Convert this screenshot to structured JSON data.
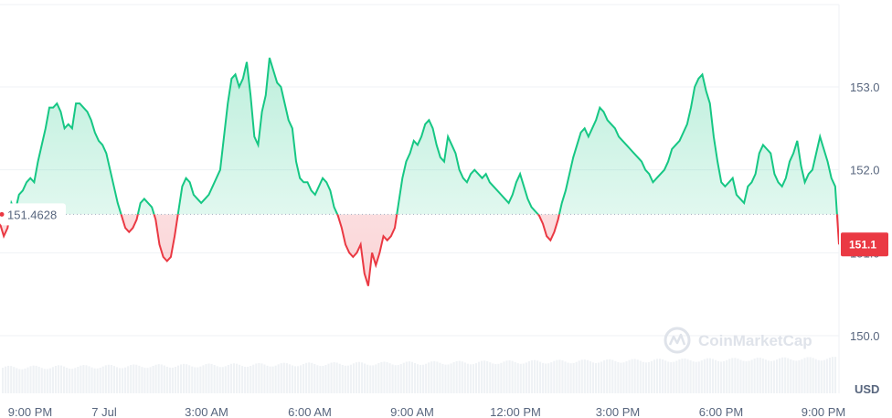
{
  "chart_data": {
    "type": "area",
    "ylabel_unit": "USD",
    "y_ticks": [
      150.0,
      151.0,
      152.0,
      153.0
    ],
    "y_tick_labels": [
      "150.0",
      "151.0",
      "152.0",
      "153.0"
    ],
    "x_tick_labels": [
      "9:00 PM",
      "7 Jul",
      "3:00 AM",
      "6:00 AM",
      "9:00 AM",
      "12:00 PM",
      "3:00 PM",
      "6:00 PM",
      "9:00 PM"
    ],
    "reference_value": 151.4628,
    "reference_label": "151.4628",
    "current_value_label": "151.1",
    "watermark": "CoinMarketCap",
    "colors": {
      "up": "#16c784",
      "down": "#ea3943",
      "axis_text": "#58667e",
      "grid": "#eff2f5"
    },
    "series": [
      {
        "values": [
          151.35,
          151.2,
          151.3,
          151.6,
          151.5,
          151.7,
          151.75,
          151.85,
          151.9,
          151.85,
          152.1,
          152.3,
          152.5,
          152.75,
          152.75,
          152.8,
          152.7,
          152.5,
          152.55,
          152.5,
          152.8,
          152.8,
          152.75,
          152.7,
          152.6,
          152.45,
          152.35,
          152.3,
          152.2,
          152.0,
          151.8,
          151.6,
          151.45,
          151.3,
          151.25,
          151.3,
          151.4,
          151.6,
          151.65,
          151.6,
          151.55,
          151.4,
          151.1,
          150.95,
          150.9,
          150.95,
          151.2,
          151.5,
          151.8,
          151.9,
          151.85,
          151.7,
          151.65,
          151.6,
          151.65,
          151.7,
          151.8,
          151.9,
          152.0,
          152.4,
          152.8,
          153.1,
          153.15,
          153.0,
          153.1,
          153.3,
          152.9,
          152.4,
          152.3,
          152.7,
          152.9,
          153.35,
          153.2,
          153.05,
          153.0,
          152.8,
          152.6,
          152.5,
          152.1,
          151.9,
          151.85,
          151.85,
          151.75,
          151.7,
          151.8,
          151.9,
          151.85,
          151.75,
          151.55,
          151.45,
          151.3,
          151.1,
          151.0,
          150.95,
          151.0,
          151.1,
          150.75,
          150.6,
          151.0,
          150.85,
          151.0,
          151.2,
          151.15,
          151.2,
          151.3,
          151.6,
          151.9,
          152.1,
          152.2,
          152.35,
          152.3,
          152.4,
          152.55,
          152.6,
          152.5,
          152.3,
          152.15,
          152.1,
          152.4,
          152.3,
          152.2,
          152.0,
          151.9,
          151.85,
          151.95,
          152.0,
          151.95,
          151.9,
          151.95,
          151.85,
          151.8,
          151.75,
          151.7,
          151.65,
          151.6,
          151.7,
          151.85,
          151.95,
          151.8,
          151.65,
          151.55,
          151.5,
          151.45,
          151.35,
          151.2,
          151.15,
          151.25,
          151.4,
          151.6,
          151.75,
          151.95,
          152.15,
          152.3,
          152.45,
          152.5,
          152.4,
          152.5,
          152.6,
          152.75,
          152.7,
          152.6,
          152.55,
          152.5,
          152.4,
          152.35,
          152.3,
          152.25,
          152.2,
          152.15,
          152.1,
          152.0,
          151.95,
          151.85,
          151.9,
          151.95,
          152.0,
          152.1,
          152.25,
          152.3,
          152.35,
          152.45,
          152.55,
          152.75,
          153.0,
          153.1,
          153.15,
          152.95,
          152.8,
          152.4,
          152.1,
          151.85,
          151.8,
          151.85,
          151.9,
          151.7,
          151.65,
          151.6,
          151.8,
          151.85,
          151.95,
          152.2,
          152.3,
          152.25,
          152.2,
          151.95,
          151.85,
          151.8,
          151.9,
          152.1,
          152.2,
          152.35,
          152.05,
          151.85,
          151.95,
          152.0,
          152.2,
          152.4,
          152.25,
          152.1,
          151.9,
          151.8,
          151.1
        ]
      }
    ]
  }
}
